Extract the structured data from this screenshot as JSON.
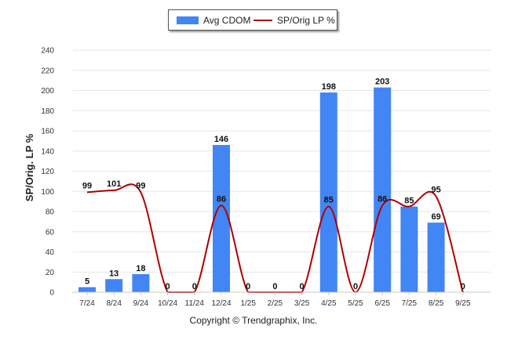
{
  "legend": {
    "bar_label": "Avg CDOM",
    "line_label": "SP/Orig LP %"
  },
  "footer": {
    "copyright": "Copyright © Trendgraphix, Inc."
  },
  "colors": {
    "bar": "#4285f4",
    "line": "#b00000",
    "grid": "#e6e6e6",
    "text": "#222222"
  },
  "chart_data": {
    "type": "bar",
    "title": "",
    "xlabel": "",
    "ylabel": "SP/Orig. LP %",
    "ylim": [
      0,
      240
    ],
    "yticks": [
      0,
      20,
      40,
      60,
      80,
      100,
      120,
      140,
      160,
      180,
      200,
      220,
      240
    ],
    "grid": true,
    "legend_position": "top-center",
    "categories": [
      "7/24",
      "8/24",
      "9/24",
      "10/24",
      "11/24",
      "12/24",
      "1/25",
      "2/25",
      "3/25",
      "4/25",
      "5/25",
      "6/25",
      "7/25",
      "8/25",
      "9/25"
    ],
    "series": [
      {
        "name": "Avg CDOM",
        "type": "bar",
        "values": [
          5,
          13,
          18,
          0,
          0,
          146,
          0,
          0,
          0,
          198,
          0,
          203,
          85,
          69,
          0
        ]
      },
      {
        "name": "SP/Orig LP %",
        "type": "line",
        "values": [
          99,
          101,
          99,
          0,
          0,
          86,
          0,
          0,
          0,
          85,
          0,
          86,
          85,
          95,
          0
        ],
        "labeled_indices": [
          0,
          1,
          2,
          5,
          9,
          11,
          13
        ]
      }
    ]
  }
}
